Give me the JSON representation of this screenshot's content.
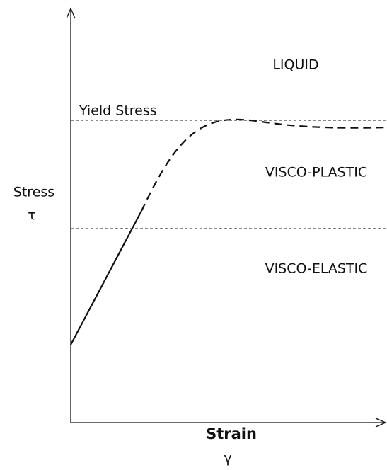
{
  "regions": {
    "top": "LIQUID",
    "middle": "VISCO-PLASTIC",
    "bottom": "VISCO-ELASTIC"
  },
  "yield_label": "Yield Stress",
  "y_axis": {
    "label": "Stress",
    "symbol": "τ"
  },
  "x_axis": {
    "label": "Strain",
    "symbol": "γ"
  }
}
